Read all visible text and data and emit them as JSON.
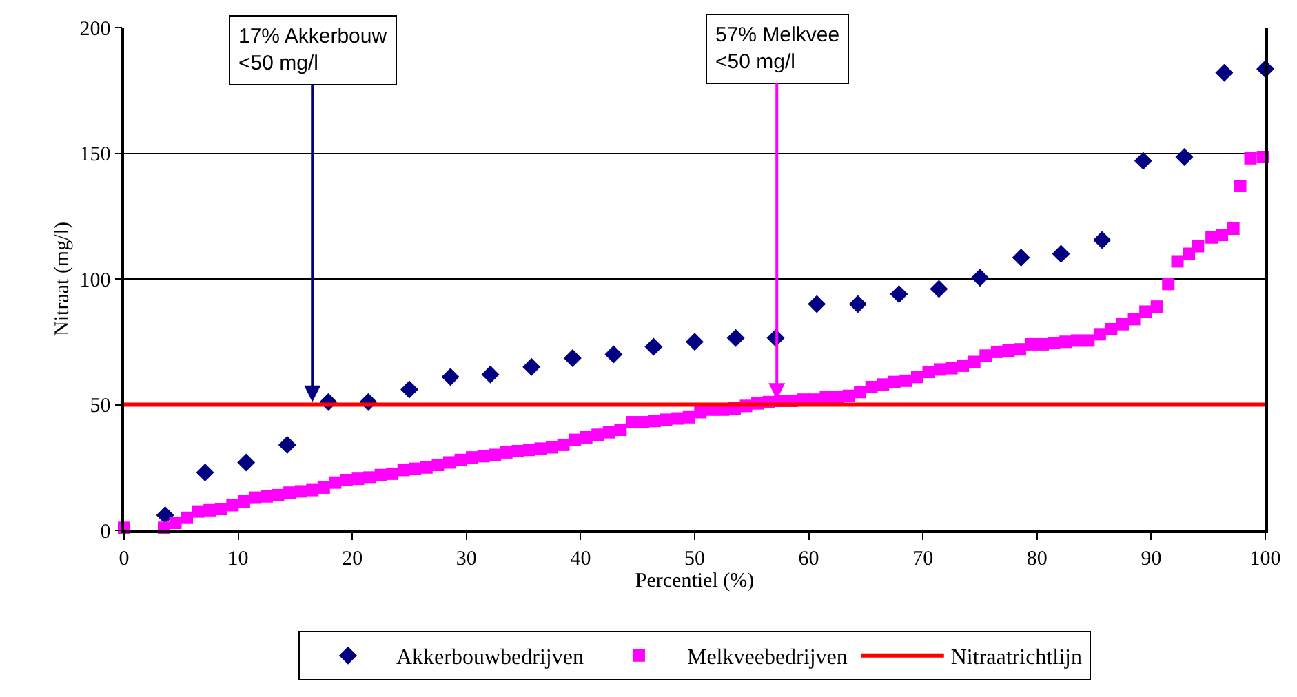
{
  "chart_data": {
    "type": "scatter",
    "xlabel": "Percentiel (%)",
    "ylabel": "Nitraat (mg/l)",
    "xlim": [
      0,
      100
    ],
    "xticks": [
      0,
      10,
      20,
      30,
      40,
      50,
      60,
      70,
      80,
      90,
      100
    ],
    "ylim": [
      0,
      200
    ],
    "yticks": [
      0,
      50,
      100,
      150,
      200
    ],
    "grid": "y",
    "legend": "bottom",
    "series": [
      {
        "name": "Akkerbouwbedrijven",
        "color": "#000080",
        "marker": "diamond",
        "x": [
          3.6,
          7.1,
          10.7,
          14.3,
          17.9,
          21.4,
          25,
          28.6,
          32.1,
          35.7,
          39.3,
          42.9,
          46.4,
          50,
          53.6,
          57.1,
          60.7,
          64.3,
          67.9,
          71.4,
          75,
          78.6,
          82.1,
          85.7,
          89.3,
          92.9,
          96.4,
          100
        ],
        "values": [
          6,
          23,
          27,
          34,
          51,
          51,
          56,
          61,
          62,
          65,
          68.5,
          70,
          73,
          75,
          76.5,
          76.5,
          90,
          90,
          94,
          96,
          100.5,
          108.5,
          110,
          115.5,
          147,
          148.5,
          182,
          183.5
        ]
      },
      {
        "name": "Melkveebedrijven",
        "color": "#ff00ff",
        "marker": "square",
        "x": [
          0,
          3.5,
          4.5,
          5.5,
          6.5,
          7.5,
          8.5,
          9.5,
          10.5,
          11.5,
          12.5,
          13.5,
          14.5,
          15.5,
          16.5,
          17.5,
          18.5,
          19.5,
          20.5,
          21.5,
          22.5,
          23.5,
          24.5,
          25.5,
          26.5,
          27.5,
          28.5,
          29.5,
          30.5,
          31.5,
          32.5,
          33.5,
          34.5,
          35.5,
          36.5,
          37.5,
          38.5,
          39.5,
          40.5,
          41.5,
          42.5,
          43.5,
          44.5,
          45.5,
          46.5,
          47.5,
          48.5,
          49.5,
          50.5,
          51.5,
          52.5,
          53.5,
          54.5,
          55.5,
          56.5,
          57.5,
          58.5,
          59.5,
          60.5,
          61.5,
          62.5,
          63.5,
          64.5,
          65.5,
          66.5,
          67.5,
          68.5,
          69.5,
          70.5,
          71.5,
          72.5,
          73.5,
          74.5,
          75.5,
          76.5,
          77.5,
          78.5,
          79.5,
          80.5,
          81.5,
          82.5,
          83.5,
          84.5,
          85.5,
          86.5,
          87.5,
          88.5,
          89.5,
          90.5,
          91.5,
          92.3,
          93.3,
          94.1,
          95.3,
          96.2,
          97.2,
          97.8,
          98.7,
          99.8
        ],
        "values": [
          1,
          1,
          3,
          5,
          7.5,
          8,
          8.5,
          10,
          11.5,
          13,
          13.5,
          14,
          15,
          15.5,
          16,
          17,
          19,
          20,
          20.5,
          21,
          22,
          22.5,
          24,
          24.5,
          25,
          26,
          27,
          28,
          29,
          29.5,
          30,
          31,
          31.5,
          32,
          32.5,
          33,
          34,
          36,
          37,
          38,
          39,
          40,
          43,
          43,
          43.5,
          44,
          44.5,
          45,
          47,
          48,
          48,
          48.5,
          49.5,
          50.5,
          51,
          51.5,
          51.5,
          52,
          52,
          53,
          53,
          53.5,
          55,
          57,
          58,
          59,
          59.5,
          61,
          63,
          64,
          64.5,
          65.5,
          67,
          69.5,
          71,
          71.5,
          72,
          74,
          74,
          74.5,
          75,
          75.5,
          75.5,
          78,
          80,
          82,
          84,
          87,
          89,
          98,
          107,
          110,
          113,
          116.5,
          117.5,
          120,
          137,
          148,
          148.5
        ]
      }
    ],
    "ref_lines": [
      {
        "axis": "y",
        "value": 50,
        "label": "Nitraatrichtlijn",
        "color": "#ff0000"
      }
    ],
    "annotations": [
      {
        "text": "17% Akkerbouw\n<50 mg/l",
        "x": 16.5,
        "y": 51
      },
      {
        "text": "57% Melkvee\n<50 mg/l",
        "x": 57.2,
        "y": 52
      }
    ]
  }
}
